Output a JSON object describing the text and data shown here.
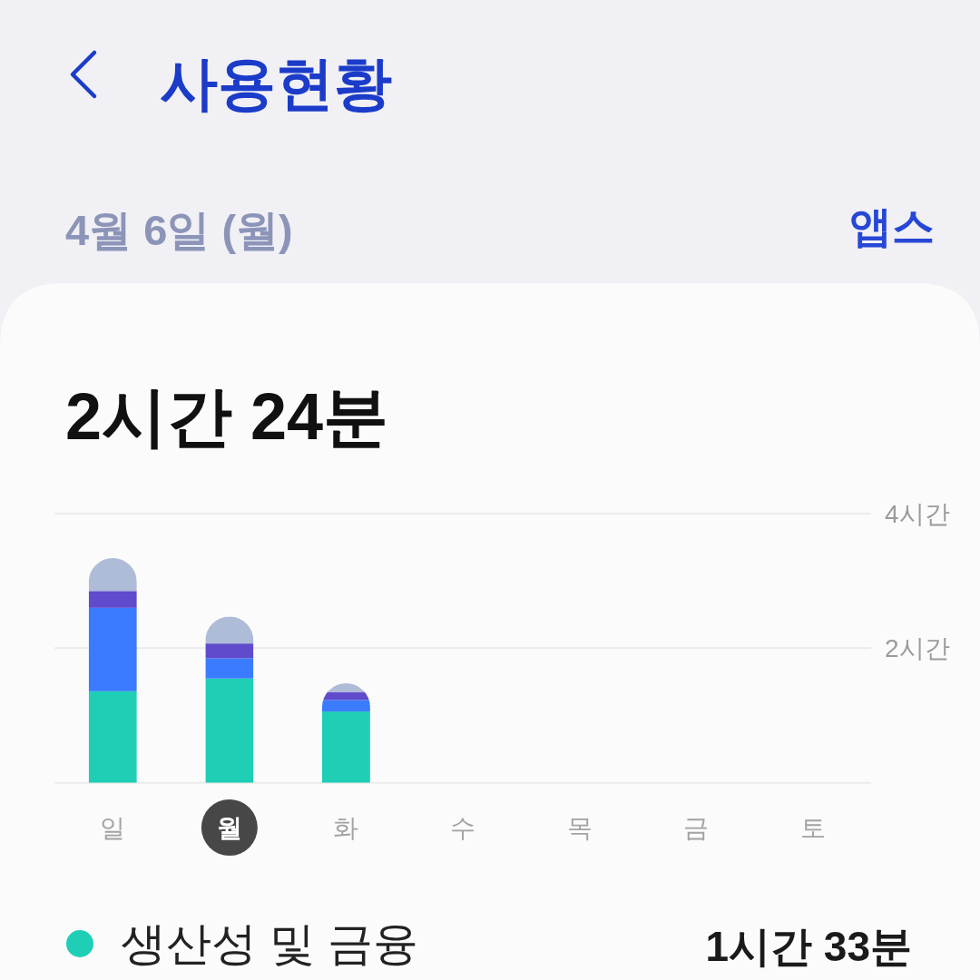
{
  "chart_data": {
    "type": "bar",
    "title": "사용현황",
    "subtitle": "4월 6일 (월)",
    "annotations": [
      "앱스",
      "2시간 24분",
      "1시간 33분"
    ],
    "categories": [
      "일",
      "월",
      "화",
      "수",
      "목",
      "금",
      "토"
    ],
    "stacked": true,
    "series": [
      {
        "name": "생산성 및 금융",
        "color": "#1ecfb6",
        "values": [
          1.36,
          1.55,
          1.06,
          null,
          null,
          null,
          null
        ]
      },
      {
        "color": "#3a7bff",
        "values": [
          1.24,
          0.3,
          0.17,
          null,
          null,
          null,
          null
        ]
      },
      {
        "color": "#5f4bcc",
        "values": [
          0.25,
          0.22,
          0.12,
          null,
          null,
          null,
          null
        ]
      },
      {
        "color": "#aebcd8",
        "values": [
          0.49,
          0.4,
          0.13,
          null,
          null,
          null,
          null
        ]
      }
    ],
    "ylim": [
      0,
      4
    ],
    "yticks": [
      {
        "value": 0,
        "label": null
      },
      {
        "value": 2,
        "label": "2시간"
      },
      {
        "value": 4,
        "label": "4시간"
      }
    ],
    "grid": "y",
    "legend": "bottom"
  }
}
